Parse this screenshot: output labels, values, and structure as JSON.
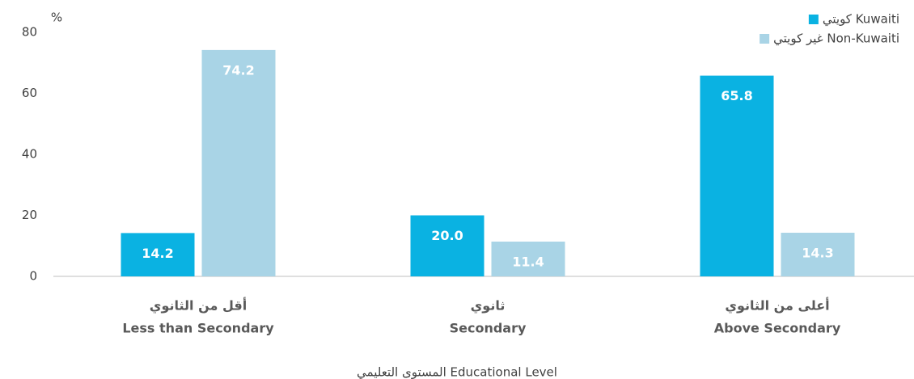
{
  "chart_data": {
    "type": "bar",
    "y_unit": "%",
    "x_label": "المستوى التعليمي  Educational Level",
    "categories": [
      [
        "أقل من الثانوي",
        "Less than Secondary"
      ],
      [
        "ثانوي",
        "Secondary"
      ],
      [
        "أعلى من الثانوي",
        "Above Secondary"
      ]
    ],
    "series": [
      {
        "name": "كويتي Kuwaiti",
        "color": "#0ab2e2",
        "values": [
          14.2,
          20,
          65.8
        ],
        "value_labels": [
          "14.2",
          "20.0",
          "65.8"
        ]
      },
      {
        "name": "غير كويتي Non-Kuwaiti",
        "color": "#a9d4e6",
        "values": [
          74.2,
          11.4,
          14.3
        ],
        "value_labels": [
          "74.2",
          "11.4",
          "14.3"
        ]
      }
    ],
    "ylim": [
      0,
      80
    ],
    "yticks": [
      0,
      20,
      40,
      60,
      80
    ],
    "grid": false,
    "legend": "top-right"
  }
}
